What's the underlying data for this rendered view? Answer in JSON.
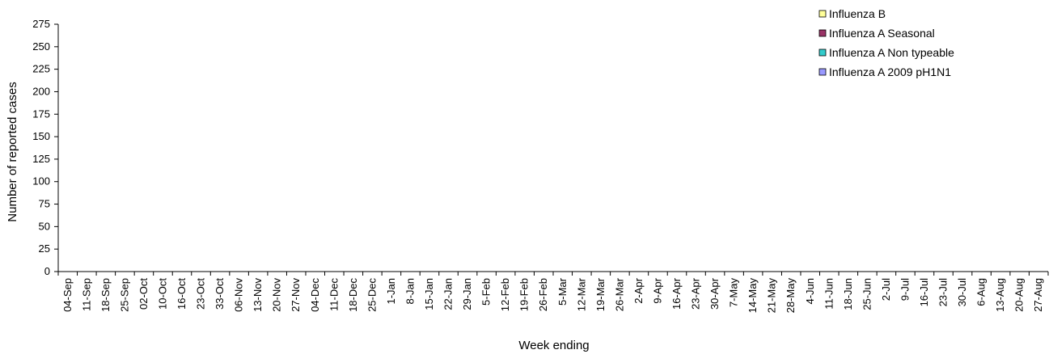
{
  "chart_data": {
    "type": "bar",
    "stacked": true,
    "title": "",
    "xlabel": "Week ending",
    "ylabel": "Number of reported cases",
    "ylim": [
      0,
      275
    ],
    "yticks": [
      0,
      25,
      50,
      75,
      100,
      125,
      150,
      175,
      200,
      225,
      250,
      275
    ],
    "grid": false,
    "legend_position": "top-right",
    "categories": [
      "04-Sep",
      "11-Sep",
      "18-Sep",
      "25-Sep",
      "02-Oct",
      "10-Oct",
      "16-Oct",
      "23-Oct",
      "33-Oct",
      "06-Nov",
      "13-Nov",
      "20-Nov",
      "27-Nov",
      "04-Dec",
      "11-Dec",
      "18-Dec",
      "25-Dec",
      "1-Jan",
      "8-Jan",
      "15-Jan",
      "22-Jan",
      "29-Jan",
      "5-Feb",
      "12-Feb",
      "19-Feb",
      "26-Feb",
      "5-Mar",
      "12-Mar",
      "19-Mar",
      "26-Mar",
      "2-Apr",
      "9-Apr",
      "16-Apr",
      "23-Apr",
      "30-Apr",
      "7-May",
      "14-May",
      "21-May",
      "28-May",
      "4-Jun",
      "11-Jun",
      "18-Jun",
      "25-Jun",
      "2-Jul",
      "9-Jul",
      "16-Jul",
      "23-Jul",
      "30-Jul",
      "6-Aug",
      "13-Aug",
      "20-Aug",
      "27-Aug"
    ],
    "series": [
      {
        "name": "Influenza B",
        "color": "#FFFF99",
        "values": [
          0,
          0,
          0,
          0,
          0,
          0,
          0,
          0,
          0,
          0,
          0,
          0,
          0,
          0,
          0,
          0,
          0,
          0,
          0,
          0,
          0,
          0,
          0,
          0,
          0,
          0,
          0,
          0,
          0,
          0,
          0,
          0,
          0,
          0,
          0,
          0,
          0,
          0,
          0,
          0,
          0,
          0,
          0,
          0,
          0,
          0,
          0,
          0,
          0,
          0,
          0,
          0
        ]
      },
      {
        "name": "Influenza A Seasonal",
        "color": "#993366",
        "values": [
          0,
          0,
          0,
          0,
          0,
          0,
          0,
          0,
          0,
          0,
          0,
          0,
          0,
          0,
          0,
          0,
          0,
          0,
          0,
          0,
          0,
          0,
          0,
          0,
          0,
          0,
          0,
          0,
          0,
          0,
          0,
          0,
          0,
          0,
          0,
          0,
          0,
          0,
          0,
          0,
          0,
          0,
          0,
          0,
          0,
          0,
          0,
          0,
          0,
          0,
          0,
          0
        ]
      },
      {
        "name": "Influenza A Non typeable",
        "color": "#33CCCC",
        "values": [
          0,
          0,
          0,
          0,
          0,
          0,
          0,
          0,
          0,
          0,
          0,
          0,
          0,
          0,
          0,
          0,
          0,
          0,
          0,
          0,
          0,
          0,
          0,
          0,
          0,
          0,
          0,
          0,
          0,
          0,
          0,
          0,
          0,
          0,
          0,
          0,
          0,
          0,
          0,
          0,
          0,
          0,
          0,
          0,
          0,
          0,
          0,
          0,
          0,
          0,
          0,
          0
        ]
      },
      {
        "name": "Influenza A 2009 pH1N1",
        "color": "#9999FF",
        "values": [
          0,
          0,
          0,
          0,
          0,
          0,
          0,
          0,
          0,
          0,
          0,
          0,
          0,
          0,
          0,
          0,
          0,
          0,
          0,
          0,
          0,
          0,
          0,
          0,
          0,
          0,
          0,
          0,
          0,
          0,
          0,
          0,
          0,
          0,
          0,
          0,
          0,
          0,
          0,
          0,
          0,
          0,
          0,
          0,
          0,
          0,
          0,
          0,
          0,
          0,
          0,
          0
        ]
      }
    ]
  }
}
